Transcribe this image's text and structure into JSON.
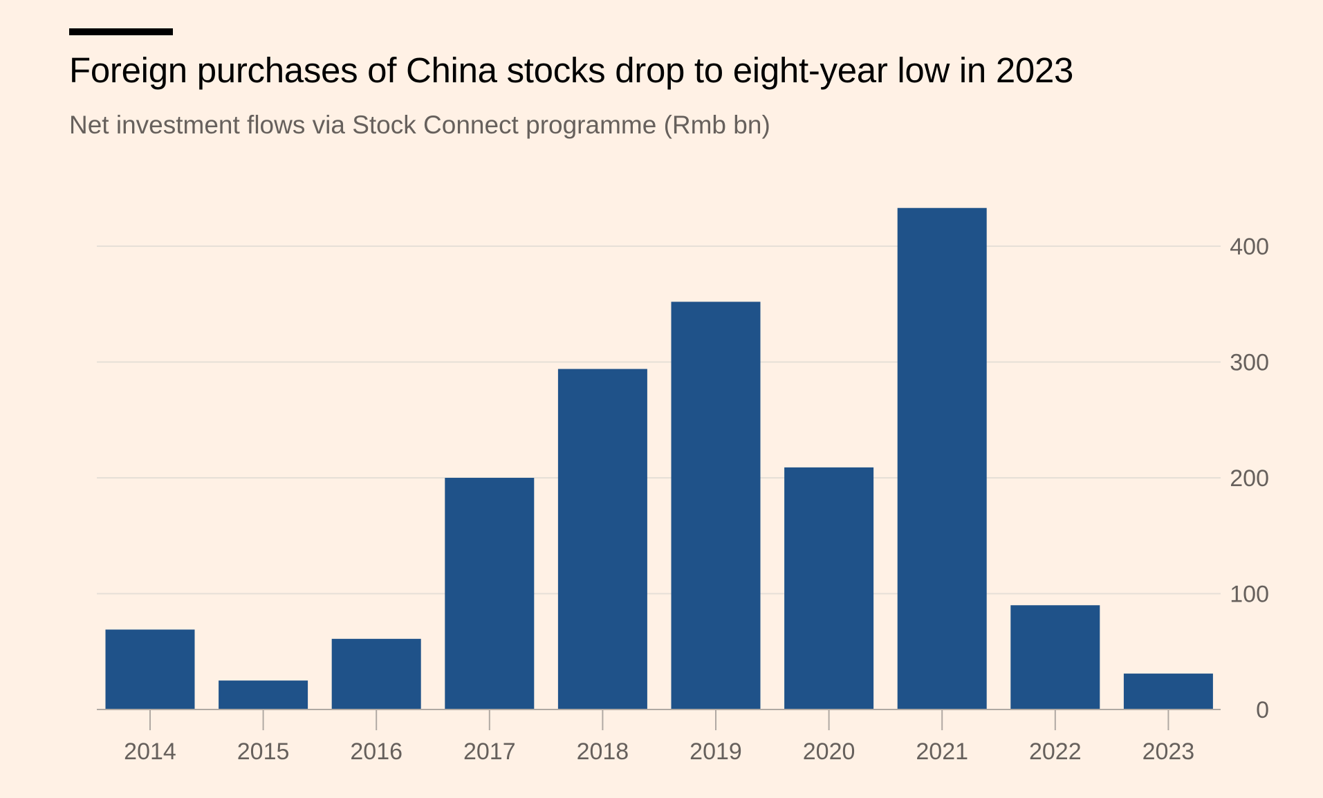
{
  "chart_data": {
    "type": "bar",
    "title": "Foreign purchases of China stocks drop to eight-year low in 2023",
    "subtitle": "Net investment flows via Stock Connect programme (Rmb bn)",
    "categories": [
      "2014",
      "2015",
      "2016",
      "2017",
      "2018",
      "2019",
      "2020",
      "2021",
      "2022",
      "2023"
    ],
    "values": [
      69,
      25,
      61,
      200,
      294,
      352,
      209,
      433,
      90,
      31
    ],
    "ylim": [
      0,
      400
    ],
    "yticks": [
      0,
      100,
      200,
      300,
      400
    ],
    "ytick_labels": [
      "0",
      "100",
      "200",
      "300",
      "400"
    ],
    "y_axis_position": "right",
    "grid": true,
    "bar_color": "#1f5289",
    "grid_color": "#e6dfd7",
    "axis_color": "#b0a9a3",
    "label_color": "#66605c"
  }
}
